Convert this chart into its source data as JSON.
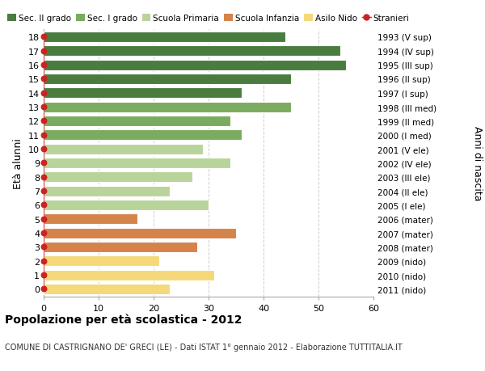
{
  "ages": [
    18,
    17,
    16,
    15,
    14,
    13,
    12,
    11,
    10,
    9,
    8,
    7,
    6,
    5,
    4,
    3,
    2,
    1,
    0
  ],
  "values": [
    44,
    54,
    55,
    45,
    36,
    45,
    34,
    36,
    29,
    34,
    27,
    23,
    30,
    17,
    35,
    28,
    21,
    31,
    23
  ],
  "right_labels": [
    "1993 (V sup)",
    "1994 (IV sup)",
    "1995 (III sup)",
    "1996 (II sup)",
    "1997 (I sup)",
    "1998 (III med)",
    "1999 (II med)",
    "2000 (I med)",
    "2001 (V ele)",
    "2002 (IV ele)",
    "2003 (III ele)",
    "2004 (II ele)",
    "2005 (I ele)",
    "2006 (mater)",
    "2007 (mater)",
    "2008 (mater)",
    "2009 (nido)",
    "2010 (nido)",
    "2011 (nido)"
  ],
  "bar_colors": [
    "#4a7c3f",
    "#4a7c3f",
    "#4a7c3f",
    "#4a7c3f",
    "#4a7c3f",
    "#7aab5e",
    "#7aab5e",
    "#7aab5e",
    "#b8d49a",
    "#b8d49a",
    "#b8d49a",
    "#b8d49a",
    "#b8d49a",
    "#d4844a",
    "#d4844a",
    "#d4844a",
    "#f5d87a",
    "#f5d87a",
    "#f5d87a"
  ],
  "legend_colors": [
    "#4a7c3f",
    "#7aab5e",
    "#b8d49a",
    "#d4844a",
    "#f5d87a"
  ],
  "legend_labels": [
    "Sec. II grado",
    "Sec. I grado",
    "Scuola Primaria",
    "Scuola Infanzia",
    "Asilo Nido"
  ],
  "stranieri_color": "#cc2222",
  "stranieri_label": "Stranieri",
  "ylabel": "Età alunni",
  "right_ylabel": "Anni di nascita",
  "xlim": [
    0,
    60
  ],
  "xticks": [
    0,
    10,
    20,
    30,
    40,
    50,
    60
  ],
  "title": "Popolazione per età scolastica - 2012",
  "subtitle": "COMUNE DI CASTRIGNANO DE' GRECI (LE) - Dati ISTAT 1° gennaio 2012 - Elaborazione TUTTITALIA.IT",
  "bg_color": "#ffffff",
  "grid_color": "#cccccc"
}
